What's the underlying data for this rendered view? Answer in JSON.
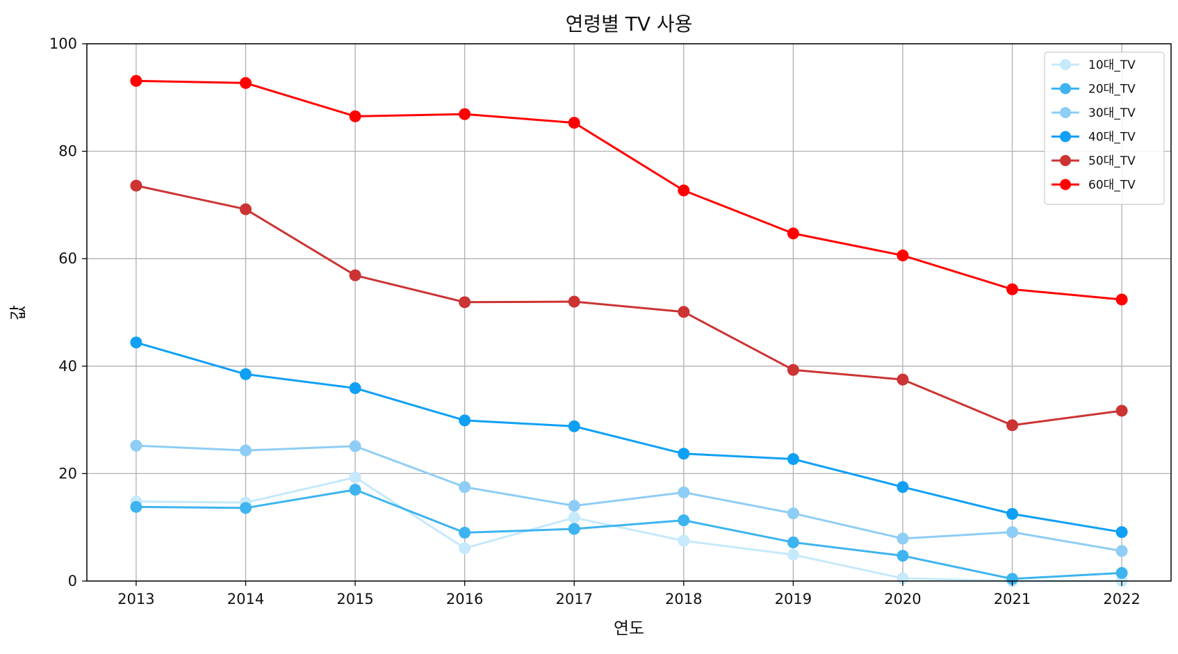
{
  "chart_data": {
    "type": "line",
    "title": "연령별 TV 사용",
    "xlabel": "연도",
    "ylabel": "값",
    "x": [
      2013,
      2014,
      2015,
      2016,
      2017,
      2018,
      2019,
      2020,
      2021,
      2022
    ],
    "xticks": [
      "2013",
      "2014",
      "2015",
      "2016",
      "2017",
      "2018",
      "2019",
      "2020",
      "2021",
      "2022"
    ],
    "xlim": [
      2012.55,
      2022.45
    ],
    "ylim": [
      0,
      100
    ],
    "yticks": [
      "0",
      "20",
      "40",
      "60",
      "80",
      "100"
    ],
    "grid": true,
    "legend_position": "top-right",
    "series": [
      {
        "name": "10대_TV",
        "color": "#c6e9fb",
        "values": [
          14.8,
          14.6,
          19.3,
          6.1,
          11.8,
          7.5,
          4.9,
          0.5,
          0.0,
          0.0
        ]
      },
      {
        "name": "20대_TV",
        "color": "#3db4f0",
        "values": [
          13.8,
          13.6,
          17.0,
          9.0,
          9.7,
          11.3,
          7.2,
          4.7,
          0.4,
          1.5
        ]
      },
      {
        "name": "30대_TV",
        "color": "#8ecdf5",
        "values": [
          25.2,
          24.3,
          25.1,
          17.5,
          14.0,
          16.5,
          12.6,
          7.9,
          9.1,
          5.6
        ]
      },
      {
        "name": "40대_TV",
        "color": "#0fa0f5",
        "values": [
          44.4,
          38.5,
          35.9,
          29.9,
          28.8,
          23.7,
          22.7,
          17.5,
          12.5,
          9.1
        ]
      },
      {
        "name": "50대_TV",
        "color": "#cc3333",
        "values": [
          73.6,
          69.2,
          56.9,
          51.9,
          52.0,
          50.1,
          39.3,
          37.5,
          29.0,
          31.7
        ]
      },
      {
        "name": "60대_TV",
        "color": "#ff0000",
        "values": [
          93.1,
          92.7,
          86.5,
          86.9,
          85.3,
          72.7,
          64.7,
          60.6,
          54.3,
          52.4
        ]
      }
    ]
  }
}
